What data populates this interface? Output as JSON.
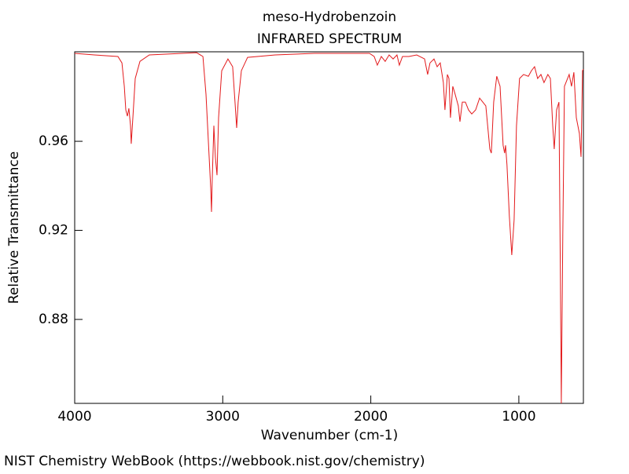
{
  "chart_data": {
    "type": "line",
    "title": "meso-Hydrobenzoin",
    "subtitle": "INFRARED SPECTRUM",
    "x_label": "Wavenumber (cm-1)",
    "y_label": "Relative Transmittance",
    "source": "NIST Chemistry WebBook (https://webbook.nist.gov/chemistry)",
    "xlim": [
      4000,
      564
    ],
    "ylim": [
      0.8423,
      1.0002
    ],
    "xticks": [
      4000,
      3000,
      2000,
      1000
    ],
    "yticks": [
      0.96,
      0.92,
      0.88
    ],
    "series": [
      {
        "color": "#e31a1c",
        "x": [
          4000,
          3867,
          3708,
          3681,
          3665,
          3655,
          3644,
          3634,
          3623,
          3618,
          3607,
          3591,
          3559,
          3496,
          3177,
          3134,
          3113,
          3092,
          3081,
          3076,
          3071,
          3060,
          3050,
          3039,
          3028,
          3007,
          2965,
          2933,
          2917,
          2906,
          2896,
          2874,
          2832,
          2646,
          2380,
          2009,
          1977,
          1956,
          1929,
          1903,
          1876,
          1849,
          1823,
          1807,
          1786,
          1743,
          1690,
          1637,
          1616,
          1600,
          1573,
          1552,
          1531,
          1510,
          1499,
          1483,
          1472,
          1462,
          1446,
          1430,
          1409,
          1398,
          1382,
          1361,
          1340,
          1318,
          1292,
          1265,
          1223,
          1196,
          1186,
          1170,
          1149,
          1127,
          1106,
          1096,
          1090,
          1080,
          1064,
          1048,
          1032,
          1016,
          995,
          968,
          936,
          915,
          894,
          873,
          851,
          830,
          804,
          787,
          771,
          761,
          745,
          729,
          719,
          713,
          703,
          692,
          660,
          644,
          628,
          612,
          591,
          580,
          570,
          564
        ],
        "y": [
          0.9995,
          0.9988,
          0.9981,
          0.9952,
          0.9847,
          0.9741,
          0.9713,
          0.9748,
          0.967,
          0.9589,
          0.9706,
          0.9882,
          0.9959,
          0.9988,
          0.9998,
          0.9981,
          0.9811,
          0.953,
          0.9389,
          0.9283,
          0.9424,
          0.967,
          0.953,
          0.9448,
          0.9706,
          0.9917,
          0.997,
          0.9935,
          0.9776,
          0.966,
          0.9776,
          0.9917,
          0.9977,
          0.9988,
          0.9995,
          0.9995,
          0.9981,
          0.9942,
          0.9981,
          0.9959,
          0.9988,
          0.997,
          0.9988,
          0.9942,
          0.9981,
          0.9981,
          0.9988,
          0.997,
          0.99,
          0.9952,
          0.997,
          0.9935,
          0.9952,
          0.9864,
          0.9741,
          0.99,
          0.9882,
          0.9706,
          0.9847,
          0.9811,
          0.9759,
          0.9688,
          0.9776,
          0.9776,
          0.9741,
          0.9723,
          0.9741,
          0.9794,
          0.9759,
          0.9565,
          0.9547,
          0.9776,
          0.9892,
          0.9847,
          0.9582,
          0.9547,
          0.9582,
          0.9494,
          0.9265,
          0.9089,
          0.9248,
          0.967,
          0.9882,
          0.99,
          0.9892,
          0.9917,
          0.9935,
          0.9882,
          0.99,
          0.9864,
          0.99,
          0.9882,
          0.967,
          0.9565,
          0.9741,
          0.9776,
          0.8966,
          0.8423,
          0.9177,
          0.9847,
          0.99,
          0.9847,
          0.991,
          0.9706,
          0.9635,
          0.953,
          0.9917,
          0.9924
        ]
      }
    ]
  }
}
